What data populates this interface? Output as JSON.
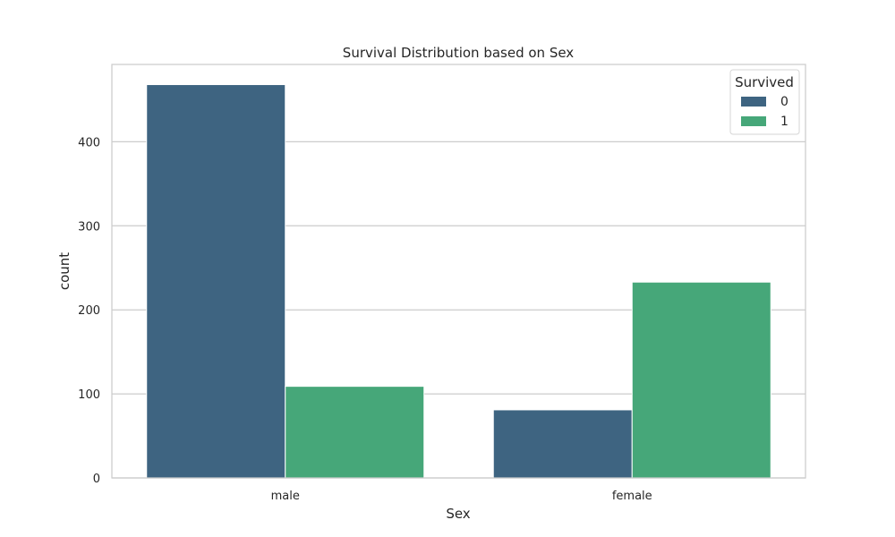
{
  "chart_data": {
    "type": "bar",
    "title": "Survival Distribution based on Sex",
    "xlabel": "Sex",
    "ylabel": "count",
    "categories": [
      "male",
      "female"
    ],
    "ylim": [
      0,
      492
    ],
    "yticks": [
      0,
      100,
      200,
      300,
      400
    ],
    "grid": true,
    "legend": {
      "title": "Survived",
      "placement": "top-right"
    },
    "series": [
      {
        "name": "0",
        "color": "#3e6481",
        "values": [
          468,
          81
        ]
      },
      {
        "name": "1",
        "color": "#46a779",
        "values": [
          109,
          233
        ]
      }
    ]
  }
}
